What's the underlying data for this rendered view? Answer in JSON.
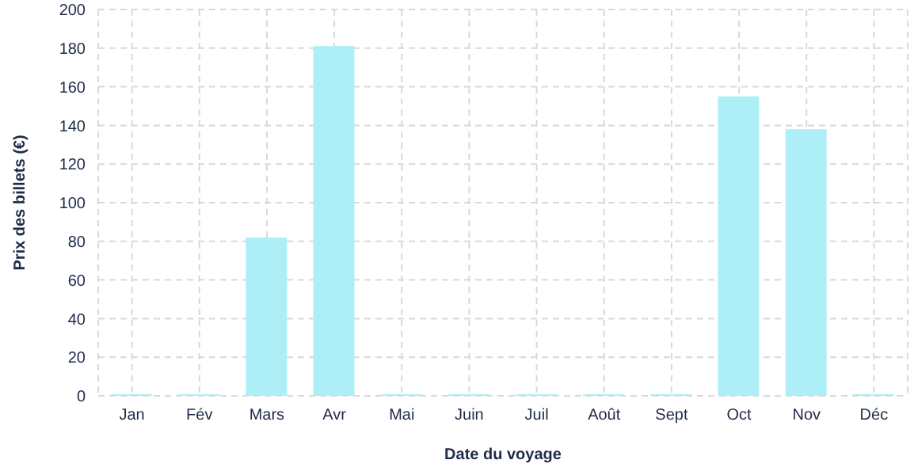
{
  "chart_data": {
    "type": "bar",
    "xlabel": "Date du voyage",
    "ylabel": "Prix des billets (€)",
    "categories": [
      "Jan",
      "Fév",
      "Mars",
      "Avr",
      "Mai",
      "Juin",
      "Juil",
      "Août",
      "Sept",
      "Oct",
      "Nov",
      "Déc"
    ],
    "values": [
      0,
      0,
      82,
      181,
      0,
      0,
      0,
      0,
      0,
      155,
      138,
      0
    ],
    "color": "#aeeef7",
    "ylim": [
      0,
      200
    ],
    "yticks": [
      0,
      20,
      40,
      60,
      80,
      100,
      120,
      140,
      160,
      180,
      200
    ],
    "grid": true,
    "legend": false
  }
}
